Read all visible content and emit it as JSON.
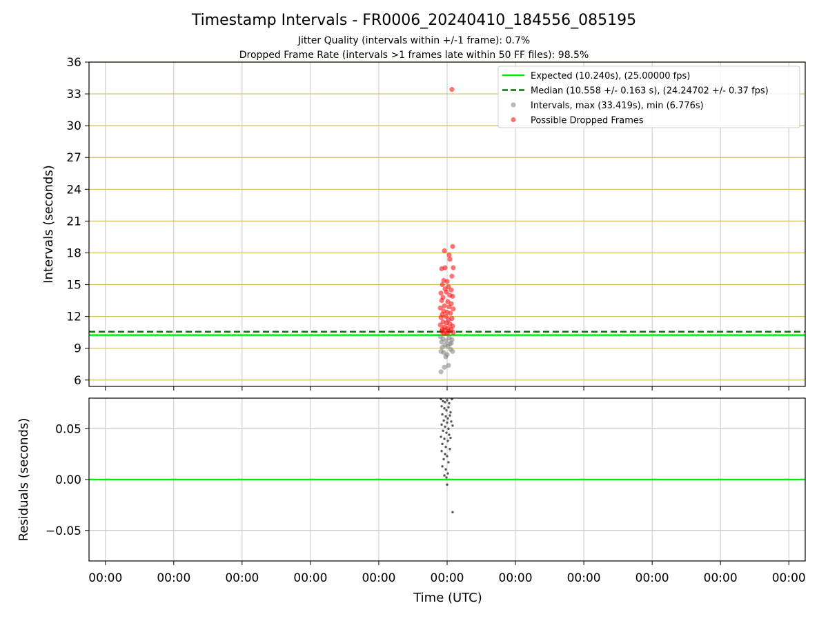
{
  "figure": {
    "title": "Timestamp Intervals - FR0006_20240410_184556_085195",
    "subtitle_line1": "Jitter Quality (intervals within +/-1 frame): 0.7%",
    "subtitle_line2": "Dropped Frame Rate (intervals >1 frames late within 50 FF files): 98.5%",
    "xlabel": "Time (UTC)",
    "x_tick_labels": [
      "00:00",
      "00:00",
      "00:00",
      "00:00",
      "00:00",
      "00:00",
      "00:00",
      "00:00",
      "00:00",
      "00:00",
      "00:00"
    ]
  },
  "colors": {
    "expected_line": "#00ee00",
    "median_line": "#007700",
    "intervals_points": "#808080",
    "dropped_points": "#ff0000",
    "grid_major": "#d4bb6a",
    "grid_light": "#c8c8c8",
    "residual_points": "#555555"
  },
  "chart_data": [
    {
      "type": "scatter",
      "panel": "intervals",
      "ylabel": "Intervals (seconds)",
      "ylim": [
        5.4,
        36
      ],
      "y_ticks": [
        6,
        9,
        12,
        15,
        18,
        21,
        24,
        27,
        30,
        33,
        36
      ],
      "y_tick_labels": [
        "6",
        "9",
        "12",
        "15",
        "18",
        "21",
        "24",
        "27",
        "30",
        "33",
        "36"
      ],
      "x_tick_positions": [
        0,
        1,
        2,
        3,
        4,
        5,
        6,
        7,
        8,
        9,
        10
      ],
      "xlim": [
        -0.24,
        10.24
      ],
      "grid": true,
      "legend_position": "top-right",
      "lines": [
        {
          "name": "Expected (10.240s), (25.00000 fps)",
          "y": 10.24,
          "style": "solid"
        },
        {
          "name": "Median (10.558 +/- 0.163 s), (24.24702 +/- 0.37 fps)",
          "y": 10.558,
          "style": "dashed"
        }
      ],
      "series": [
        {
          "name": "Intervals, max (33.419s), min (6.776s)",
          "marker": "circle",
          "points": [
            [
              4.91,
              6.78
            ],
            [
              4.96,
              7.2
            ],
            [
              5.02,
              7.38
            ],
            [
              4.91,
              8.7
            ],
            [
              4.95,
              8.6
            ],
            [
              5.0,
              8.4
            ],
            [
              5.05,
              8.9
            ],
            [
              5.08,
              8.7
            ],
            [
              4.93,
              9.1
            ],
            [
              4.97,
              9.3
            ],
            [
              5.01,
              9.2
            ],
            [
              5.04,
              9.4
            ],
            [
              4.92,
              9.6
            ],
            [
              4.99,
              9.7
            ],
            [
              5.06,
              9.5
            ],
            [
              4.94,
              9.9
            ],
            [
              5.03,
              10.0
            ],
            [
              4.9,
              10.1
            ],
            [
              5.07,
              9.8
            ],
            [
              4.98,
              8.2
            ]
          ]
        },
        {
          "name": "Possible Dropped Frames",
          "marker": "circle",
          "points": [
            [
              5.07,
              33.42
            ],
            [
              5.08,
              18.6
            ],
            [
              4.96,
              18.2
            ],
            [
              5.03,
              17.8
            ],
            [
              5.04,
              17.4
            ],
            [
              4.97,
              16.6
            ],
            [
              4.92,
              16.5
            ],
            [
              5.09,
              16.6
            ],
            [
              5.07,
              15.8
            ],
            [
              4.95,
              15.4
            ],
            [
              5.0,
              15.3
            ],
            [
              4.93,
              15.0
            ],
            [
              5.02,
              14.8
            ],
            [
              4.97,
              14.6
            ],
            [
              5.06,
              14.5
            ],
            [
              4.91,
              14.2
            ],
            [
              4.99,
              14.3
            ],
            [
              5.04,
              14.0
            ],
            [
              4.94,
              13.8
            ],
            [
              5.08,
              13.9
            ],
            [
              4.92,
              13.5
            ],
            [
              5.01,
              13.4
            ],
            [
              5.06,
              13.2
            ],
            [
              4.96,
              13.0
            ],
            [
              4.9,
              12.8
            ],
            [
              5.03,
              12.9
            ],
            [
              5.09,
              12.7
            ],
            [
              4.95,
              12.5
            ],
            [
              5.0,
              12.4
            ],
            [
              4.93,
              12.2
            ],
            [
              5.05,
              12.3
            ],
            [
              4.98,
              12.0
            ],
            [
              4.91,
              11.9
            ],
            [
              5.07,
              11.8
            ],
            [
              5.02,
              11.7
            ],
            [
              4.94,
              11.5
            ],
            [
              4.99,
              11.4
            ],
            [
              5.04,
              11.3
            ],
            [
              4.9,
              11.2
            ],
            [
              5.08,
              11.1
            ],
            [
              4.96,
              11.0
            ],
            [
              5.01,
              10.9
            ],
            [
              4.93,
              10.8
            ],
            [
              5.06,
              10.8
            ],
            [
              4.97,
              10.7
            ],
            [
              5.03,
              10.6
            ],
            [
              4.92,
              10.6
            ],
            [
              5.09,
              10.5
            ],
            [
              4.95,
              10.4
            ],
            [
              5.0,
              10.4
            ]
          ]
        }
      ]
    },
    {
      "type": "scatter",
      "panel": "residuals",
      "ylabel": "Residuals (seconds)",
      "ylim": [
        -0.08,
        0.08
      ],
      "y_ticks": [
        -0.05,
        0.0,
        0.05
      ],
      "y_tick_labels": [
        "−0.05",
        "0.00",
        "0.05"
      ],
      "xlim": [
        -0.24,
        10.24
      ],
      "grid": true,
      "zero_line": 0.0,
      "points": [
        [
          4.91,
          0.079
        ],
        [
          4.94,
          0.077
        ],
        [
          4.97,
          0.076
        ],
        [
          5.0,
          0.078
        ],
        [
          5.03,
          0.075
        ],
        [
          5.07,
          0.079
        ],
        [
          4.92,
          0.072
        ],
        [
          4.96,
          0.07
        ],
        [
          4.99,
          0.068
        ],
        [
          5.02,
          0.071
        ],
        [
          5.05,
          0.066
        ],
        [
          4.93,
          0.064
        ],
        [
          4.98,
          0.062
        ],
        [
          5.01,
          0.06
        ],
        [
          5.04,
          0.063
        ],
        [
          4.95,
          0.058
        ],
        [
          5.0,
          0.056
        ],
        [
          5.06,
          0.057
        ],
        [
          4.92,
          0.054
        ],
        [
          4.97,
          0.052
        ],
        [
          5.02,
          0.05
        ],
        [
          5.08,
          0.053
        ],
        [
          4.94,
          0.048
        ],
        [
          4.99,
          0.046
        ],
        [
          5.03,
          0.044
        ],
        [
          4.91,
          0.042
        ],
        [
          4.96,
          0.04
        ],
        [
          5.01,
          0.038
        ],
        [
          5.05,
          0.041
        ],
        [
          4.93,
          0.035
        ],
        [
          4.98,
          0.032
        ],
        [
          5.04,
          0.03
        ],
        [
          4.92,
          0.028
        ],
        [
          4.97,
          0.025
        ],
        [
          5.0,
          0.023
        ],
        [
          4.95,
          0.02
        ],
        [
          5.02,
          0.017
        ],
        [
          4.93,
          0.013
        ],
        [
          4.98,
          0.01
        ],
        [
          5.01,
          0.006
        ],
        [
          4.96,
          0.004
        ],
        [
          4.99,
          0.002
        ],
        [
          5.0,
          -0.005
        ],
        [
          5.08,
          -0.032
        ]
      ]
    }
  ]
}
